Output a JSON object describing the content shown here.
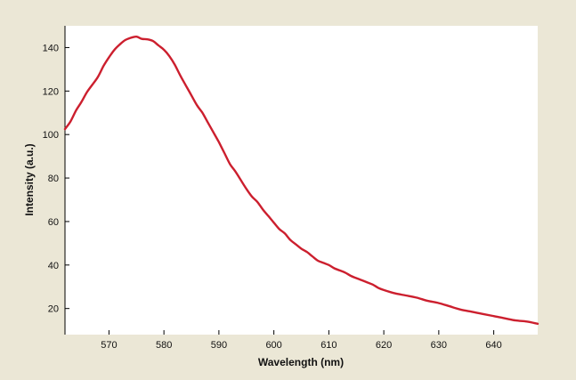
{
  "chart_data": {
    "type": "line",
    "xlabel": "Wavelength (nm)",
    "ylabel": "Intensity (a.u.)",
    "xlim": [
      562,
      648
    ],
    "ylim": [
      8,
      150
    ],
    "xticks": [
      570,
      580,
      590,
      600,
      610,
      620,
      630,
      640
    ],
    "yticks": [
      20,
      40,
      60,
      80,
      100,
      120,
      140
    ],
    "grid": false,
    "colors": {
      "line": "#cc1f2e",
      "plot_bg": "#ffffff",
      "page_bg": "#ebe7d6"
    },
    "series": [
      {
        "x": [
          562,
          563,
          564,
          565,
          566,
          567,
          568,
          569,
          570,
          571,
          572,
          573,
          574,
          575,
          576,
          577,
          578,
          579,
          580,
          581,
          582,
          583,
          584,
          585,
          586,
          587,
          588,
          589,
          590,
          591,
          592,
          593,
          594,
          595,
          596,
          597,
          598,
          599,
          600,
          601,
          602,
          603,
          604,
          605,
          606,
          607,
          608,
          609,
          610,
          611,
          612,
          613,
          614,
          615,
          616,
          617,
          618,
          619,
          620,
          622,
          624,
          626,
          628,
          630,
          632,
          634,
          636,
          638,
          640,
          642,
          644,
          646,
          648
        ],
        "values": [
          102.5,
          106,
          111,
          115,
          119.5,
          123,
          126.5,
          131.5,
          135.5,
          139,
          141.5,
          143.5,
          144.5,
          145,
          144,
          143.8,
          143,
          141,
          139,
          136,
          132,
          127,
          122.5,
          118,
          113.5,
          110,
          105.5,
          101,
          96.5,
          91.5,
          86.5,
          83,
          79,
          75,
          71.5,
          69,
          65.5,
          62.5,
          59.5,
          56.5,
          54.5,
          51.5,
          49.5,
          47.5,
          46,
          44,
          42,
          41,
          40,
          38.5,
          37.5,
          36.5,
          35,
          34,
          33,
          32,
          31,
          29.5,
          28.5,
          27,
          26,
          25,
          23.5,
          22.5,
          21,
          19.5,
          18.5,
          17.5,
          16.5,
          15.5,
          14.5,
          14,
          13
        ]
      }
    ]
  }
}
